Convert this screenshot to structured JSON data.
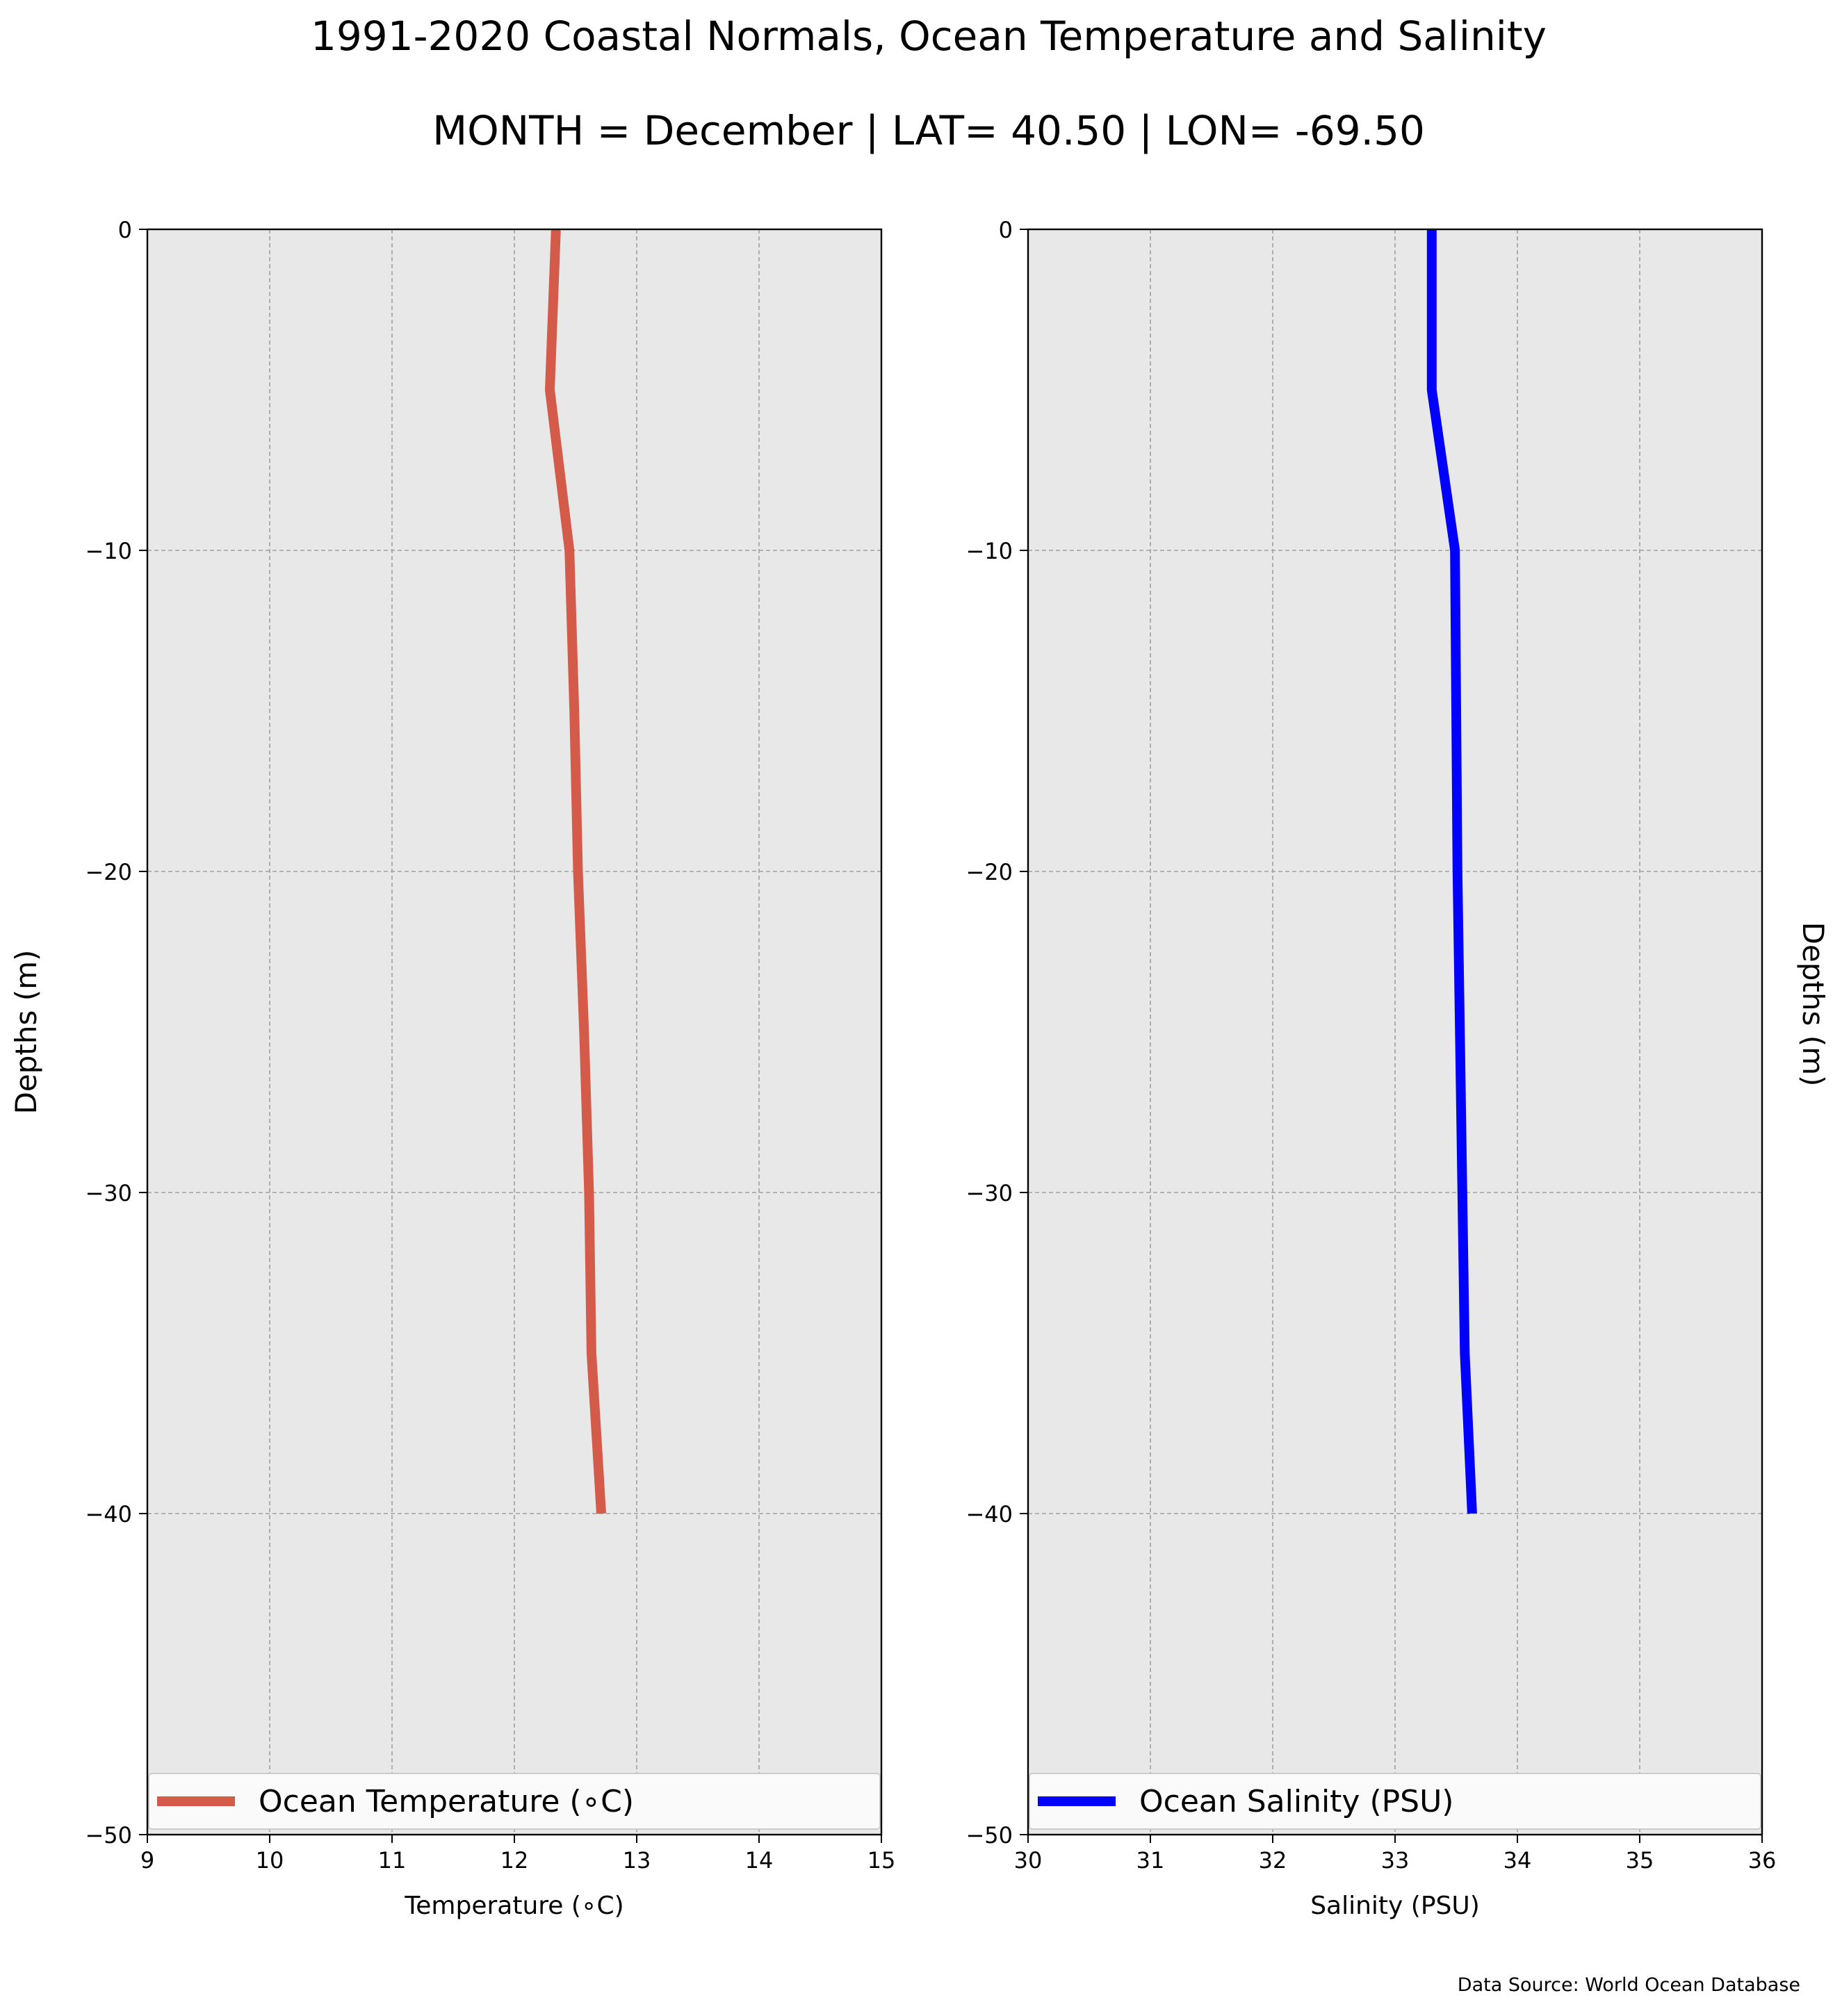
{
  "figure": {
    "title": "1991-2020 Coastal Normals, Ocean Temperature and Salinity",
    "subtitle": "MONTH = December | LAT= 40.50 | LON= -69.50",
    "source": "Data Source: World Ocean Database",
    "background": "#ffffff",
    "plot_background": "#e8e8e8",
    "grid_color": "#a0a0a0"
  },
  "chart_data": [
    {
      "type": "line",
      "xlabel": "Temperature (∘C)",
      "ylabel": "Depths (m)",
      "ylabel_side": "left",
      "xlim": [
        9,
        15
      ],
      "ylim": [
        -50,
        0
      ],
      "xticks": [
        9,
        10,
        11,
        12,
        13,
        14,
        15
      ],
      "yticks": [
        0,
        -10,
        -20,
        -30,
        -40,
        -50
      ],
      "xtick_labels": [
        "9",
        "10",
        "11",
        "12",
        "13",
        "14",
        "15"
      ],
      "ytick_labels": [
        "0",
        "−10",
        "−20",
        "−30",
        "−40",
        "−50"
      ],
      "grid": true,
      "legend_position": "bottom",
      "series": [
        {
          "name": "Ocean Temperature (∘C)",
          "color": "#d45b4a",
          "points": [
            {
              "x": 12.34,
              "y": 0
            },
            {
              "x": 12.29,
              "y": -5
            },
            {
              "x": 12.45,
              "y": -10
            },
            {
              "x": 12.49,
              "y": -15
            },
            {
              "x": 12.52,
              "y": -20
            },
            {
              "x": 12.57,
              "y": -25
            },
            {
              "x": 12.61,
              "y": -30
            },
            {
              "x": 12.63,
              "y": -35
            },
            {
              "x": 12.71,
              "y": -40
            }
          ]
        }
      ]
    },
    {
      "type": "line",
      "xlabel": "Salinity (PSU)",
      "ylabel": "Depths (m)",
      "ylabel_side": "right",
      "xlim": [
        30,
        36
      ],
      "ylim": [
        -50,
        0
      ],
      "xticks": [
        30,
        31,
        32,
        33,
        34,
        35,
        36
      ],
      "yticks": [
        0,
        -10,
        -20,
        -30,
        -40,
        -50
      ],
      "xtick_labels": [
        "30",
        "31",
        "32",
        "33",
        "34",
        "35",
        "36"
      ],
      "ytick_labels": [
        "0",
        "−10",
        "−20",
        "−30",
        "−40",
        "−50"
      ],
      "grid": true,
      "legend_position": "bottom",
      "series": [
        {
          "name": "Ocean Salinity (PSU)",
          "color": "#0000ff",
          "points": [
            {
              "x": 33.3,
              "y": 0
            },
            {
              "x": 33.3,
              "y": -5
            },
            {
              "x": 33.49,
              "y": -10
            },
            {
              "x": 33.5,
              "y": -15
            },
            {
              "x": 33.51,
              "y": -20
            },
            {
              "x": 33.53,
              "y": -25
            },
            {
              "x": 33.55,
              "y": -30
            },
            {
              "x": 33.57,
              "y": -35
            },
            {
              "x": 33.63,
              "y": -40
            }
          ]
        }
      ]
    }
  ]
}
